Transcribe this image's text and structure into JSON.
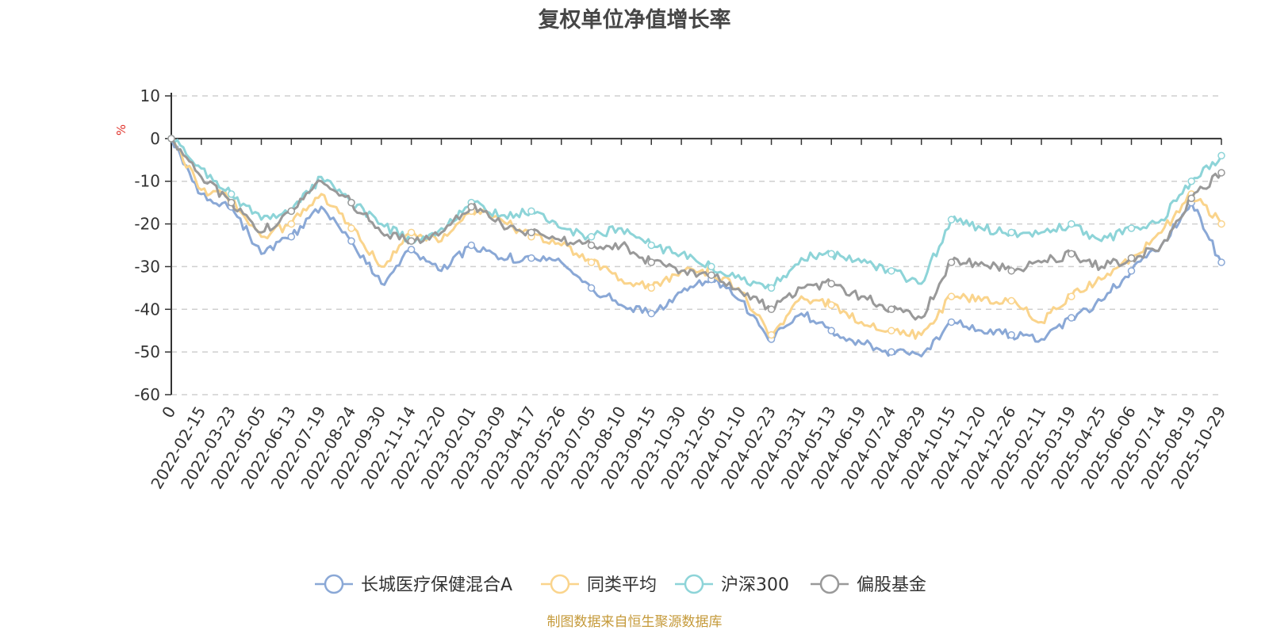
{
  "chart_data": {
    "type": "line",
    "title": "复权单位净值增长率",
    "ylabel": "%",
    "ylim": [
      -60,
      10
    ],
    "yticks": [
      10,
      0,
      -10,
      -20,
      -30,
      -40,
      -50,
      -60
    ],
    "grid": true,
    "legend_position": "bottom",
    "x_labels": [
      "0",
      "2022-02-15",
      "2022-03-23",
      "2022-05-05",
      "2022-06-13",
      "2022-07-19",
      "2022-08-24",
      "2022-09-30",
      "2022-11-14",
      "2022-12-20",
      "2023-02-01",
      "2023-03-09",
      "2023-04-17",
      "2023-05-26",
      "2023-07-05",
      "2023-08-10",
      "2023-09-15",
      "2023-10-30",
      "2023-12-05",
      "2024-01-10",
      "2024-02-23",
      "2024-03-31",
      "2024-05-13",
      "2024-06-19",
      "2024-07-24",
      "2024-08-29",
      "2024-10-15",
      "2024-11-20",
      "2024-12-26",
      "2025-02-11",
      "2025-03-19",
      "2025-04-25",
      "2025-06-06",
      "2025-07-14",
      "2025-08-19",
      "2025-10-29"
    ],
    "series": [
      {
        "name": "长城医疗保健混合A",
        "color": "#8aa8d6",
        "values": [
          0,
          -13,
          -16,
          -27,
          -23,
          -16,
          -24,
          -34,
          -26,
          -31,
          -25,
          -28,
          -28,
          -29,
          -35,
          -39,
          -41,
          -36,
          -33,
          -38,
          -47,
          -41,
          -45,
          -48,
          -50,
          -51,
          -43,
          -45,
          -46,
          -47,
          -42,
          -38,
          -31,
          -25,
          -15,
          -29
        ]
      },
      {
        "name": "同类平均",
        "color": "#fad48c",
        "values": [
          0,
          -12,
          -14,
          -23,
          -20,
          -13,
          -21,
          -30,
          -22,
          -24,
          -17,
          -19,
          -23,
          -25,
          -29,
          -33,
          -35,
          -31,
          -31,
          -36,
          -46,
          -37,
          -39,
          -43,
          -45,
          -46,
          -37,
          -38,
          -38,
          -43,
          -37,
          -33,
          -28,
          -22,
          -13,
          -20
        ]
      },
      {
        "name": "沪深300",
        "color": "#8dd4d8",
        "values": [
          0,
          -7,
          -13,
          -19,
          -17,
          -9,
          -15,
          -20,
          -24,
          -21,
          -15,
          -18,
          -17,
          -21,
          -23,
          -21,
          -25,
          -27,
          -30,
          -33,
          -35,
          -28,
          -27,
          -29,
          -31,
          -34,
          -19,
          -21,
          -22,
          -22,
          -20,
          -24,
          -21,
          -19,
          -10,
          -4
        ]
      },
      {
        "name": "偏股基金",
        "color": "#999999",
        "values": [
          0,
          -9,
          -15,
          -22,
          -17,
          -10,
          -15,
          -22,
          -24,
          -22,
          -16,
          -20,
          -22,
          -24,
          -25,
          -25,
          -29,
          -31,
          -32,
          -36,
          -40,
          -35,
          -34,
          -37,
          -40,
          -42,
          -29,
          -29,
          -31,
          -29,
          -27,
          -30,
          -28,
          -25,
          -14,
          -8
        ]
      }
    ],
    "source_note": "制图数据来自恒生聚源数据库"
  }
}
